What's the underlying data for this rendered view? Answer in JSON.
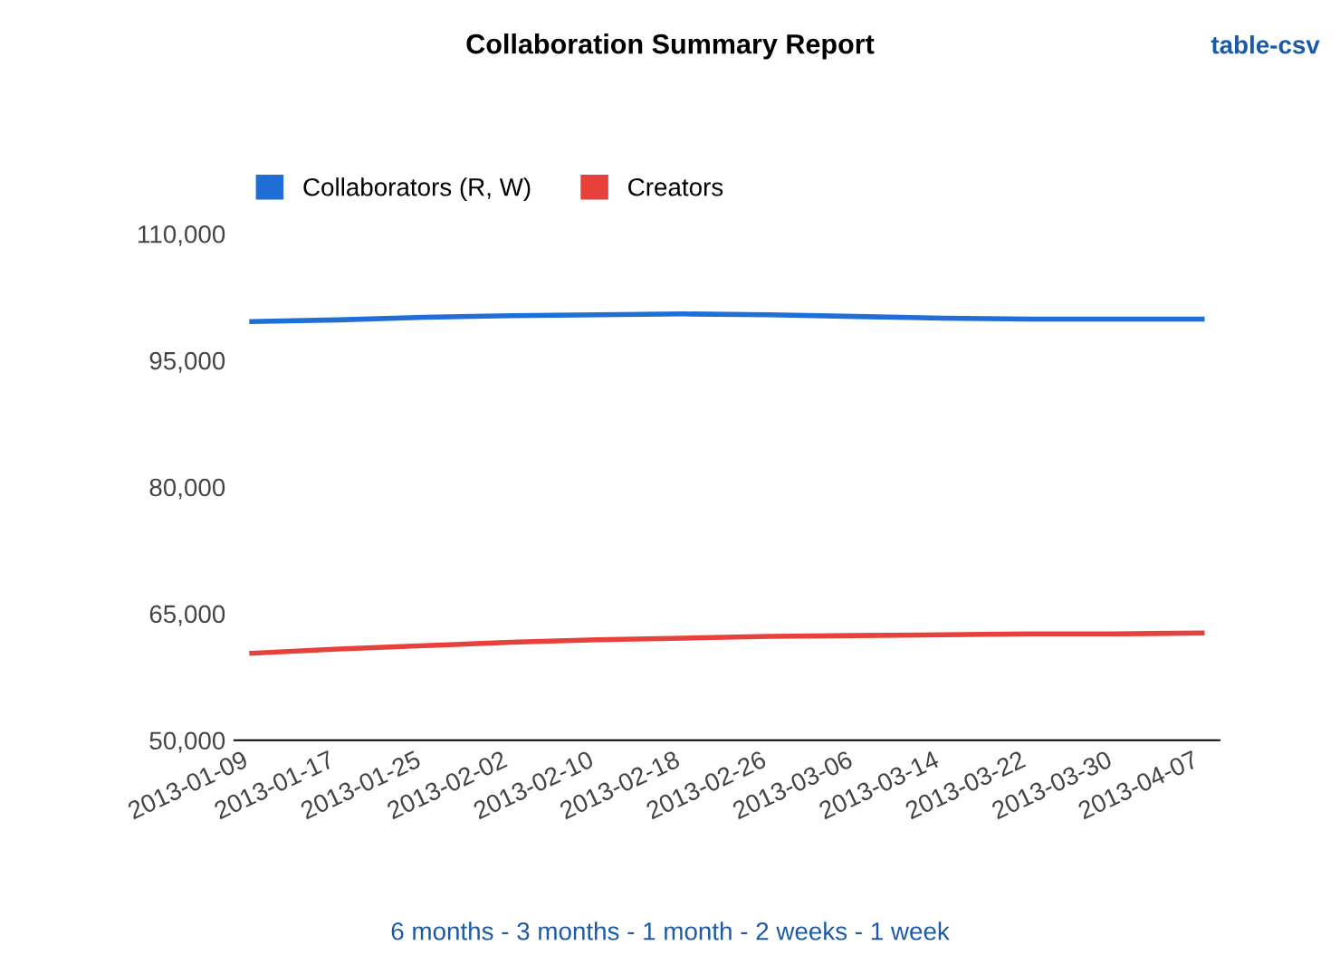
{
  "chart_data": {
    "type": "line",
    "title": "Collaboration Summary Report",
    "categories": [
      "2013-01-09",
      "2013-01-17",
      "2013-01-25",
      "2013-02-02",
      "2013-02-10",
      "2013-02-18",
      "2013-02-26",
      "2013-03-06",
      "2013-03-14",
      "2013-03-22",
      "2013-03-30",
      "2013-04-07"
    ],
    "series": [
      {
        "name": "Collaborators (R, W)",
        "color": "#1f6fd6",
        "values": [
          99600,
          99800,
          100100,
          100300,
          100400,
          100500,
          100400,
          100200,
          100000,
          99900,
          99900,
          99900
        ]
      },
      {
        "name": "Creators",
        "color": "#e8403a",
        "values": [
          60300,
          60800,
          61200,
          61600,
          61900,
          62100,
          62300,
          62400,
          62500,
          62600,
          62600,
          62700
        ]
      }
    ],
    "ylim": [
      50000,
      110000
    ],
    "yticks": [
      {
        "value": 50000,
        "label": "50,000"
      },
      {
        "value": 65000,
        "label": "65,000"
      },
      {
        "value": 80000,
        "label": "80,000"
      },
      {
        "value": 95000,
        "label": "95,000"
      },
      {
        "value": 110000,
        "label": "110,000"
      }
    ],
    "grid": false,
    "legend": "top left",
    "annotations": [
      "table-csv",
      "6 months - 3 months - 1 month - 2 weeks - 1 week"
    ]
  }
}
